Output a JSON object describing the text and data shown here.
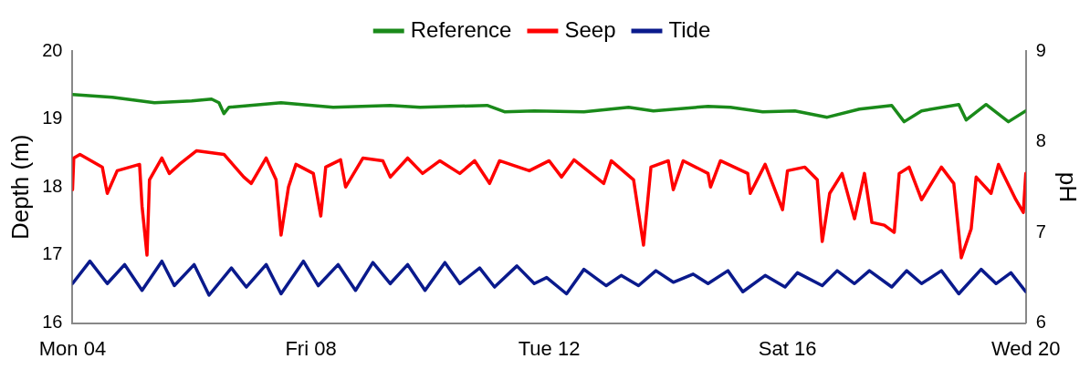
{
  "chart_data": {
    "type": "line",
    "ylabel": "Depth (m)",
    "y2label": "pH",
    "xlim": [
      "--03-04",
      "--03-20"
    ],
    "xticks": [
      {
        "value": "--03-04",
        "label": "Mon 04"
      },
      {
        "value": "--03-08",
        "label": "Fri 08"
      },
      {
        "value": "--03-12",
        "label": "Tue 12"
      },
      {
        "value": "--03-16",
        "label": "Sat 16"
      },
      {
        "value": "--03-20",
        "label": "Wed 20"
      }
    ],
    "ylim": [
      16,
      20
    ],
    "yticks": [
      16,
      17,
      18,
      19,
      20
    ],
    "y2lim": [
      6,
      9
    ],
    "y2ticks": [
      6,
      7,
      8,
      9
    ],
    "legend": "top",
    "grid": false,
    "marker": "none",
    "line_style": "solid",
    "series": [
      {
        "name": "Reference",
        "color": "#1a8a1a",
        "axis": "y2",
        "x": [
          "--03-04T00:00",
          "--03-04T16:00",
          "--03-05T09:00",
          "--03-06T00:00",
          "--03-06T08:00",
          "--03-06T11:00",
          "--03-06T13:00",
          "--03-06T15:00",
          "--03-07T12:00",
          "--03-08T09:00",
          "--03-09T08:00",
          "--03-09T20:00",
          "--03-10T23:00",
          "--03-11T06:00",
          "--03-11T18:00",
          "--03-12T14:00",
          "--03-13T08:00",
          "--03-13T18:00",
          "--03-14T16:00",
          "--03-15T01:00",
          "--03-15T14:00",
          "--03-16T03:00",
          "--03-16T16:00",
          "--03-17T05:00",
          "--03-17T18:00",
          "--03-17T23:00",
          "--03-18T06:00",
          "--03-18T21:00",
          "--03-19T00:00",
          "--03-19T08:00",
          "--03-19T17:00",
          "--03-20T00:00"
        ],
        "values": [
          8.52,
          8.49,
          8.43,
          8.45,
          8.47,
          8.43,
          8.31,
          8.38,
          8.43,
          8.38,
          8.4,
          8.38,
          8.4,
          8.33,
          8.34,
          8.33,
          8.38,
          8.34,
          8.39,
          8.38,
          8.33,
          8.34,
          8.27,
          8.36,
          8.4,
          8.22,
          8.34,
          8.41,
          8.24,
          8.41,
          8.22,
          8.34
        ]
      },
      {
        "name": "Seep",
        "color": "#ff0000",
        "axis": "y2",
        "x": [
          "--03-04T00:00",
          "--03-04T00:30",
          "--03-04T03:00",
          "--03-04T12:00",
          "--03-04T14:00",
          "--03-04T18:00",
          "--03-05T03:00",
          "--03-05T04:00",
          "--03-05T06:00",
          "--03-05T07:00",
          "--03-05T12:00",
          "--03-05T15:00",
          "--03-05T19:00",
          "--03-06T02:00",
          "--03-06T13:00",
          "--03-06T21:00",
          "--03-07T00:00",
          "--03-07T06:00",
          "--03-07T10:00",
          "--03-07T12:00",
          "--03-07T15:00",
          "--03-07T18:00",
          "--03-08T01:00",
          "--03-08T04:00",
          "--03-08T06:00",
          "--03-08T12:00",
          "--03-08T14:00",
          "--03-08T21:00",
          "--03-09T05:00",
          "--03-09T08:00",
          "--03-09T15:00",
          "--03-09T21:00",
          "--03-10T04:00",
          "--03-10T12:00",
          "--03-10T18:00",
          "--03-11T00:00",
          "--03-11T04:00",
          "--03-11T16:00",
          "--03-12T00:00",
          "--03-12T05:00",
          "--03-12T10:00",
          "--03-12T22:00",
          "--03-13T01:00",
          "--03-13T10:00",
          "--03-13T14:00",
          "--03-13T17:00",
          "--03-14T00:00",
          "--03-14T02:00",
          "--03-14T06:00",
          "--03-14T16:00",
          "--03-14T17:00",
          "--03-14T21:00",
          "--03-15T08:00",
          "--03-15T09:00",
          "--03-15T15:00",
          "--03-15T22:00",
          "--03-16T00:00",
          "--03-16T07:00",
          "--03-16T12:00",
          "--03-16T14:00",
          "--03-16T17:00",
          "--03-16T22:00",
          "--03-17T03:00",
          "--03-17T07:00",
          "--03-17T10:00",
          "--03-17T15:00",
          "--03-17T19:00",
          "--03-17T21:00",
          "--03-18T01:00",
          "--03-18T06:00",
          "--03-18T14:00",
          "--03-18T19:00",
          "--03-18T22:00",
          "--03-19T02:00",
          "--03-19T04:00",
          "--03-19T10:00",
          "--03-19T13:00",
          "--03-19T20:00",
          "--03-19T23:00",
          "--03-20T00:00"
        ],
        "values": [
          7.47,
          7.82,
          7.86,
          7.72,
          7.43,
          7.68,
          7.75,
          7.29,
          6.75,
          7.58,
          7.82,
          7.65,
          7.75,
          7.9,
          7.86,
          7.61,
          7.54,
          7.82,
          7.58,
          6.97,
          7.5,
          7.75,
          7.65,
          7.18,
          7.72,
          7.8,
          7.5,
          7.82,
          7.79,
          7.61,
          7.82,
          7.65,
          7.79,
          7.65,
          7.79,
          7.54,
          7.79,
          7.68,
          7.79,
          7.61,
          7.8,
          7.54,
          7.79,
          7.58,
          6.86,
          7.72,
          7.79,
          7.47,
          7.79,
          7.65,
          7.5,
          7.79,
          7.65,
          7.43,
          7.75,
          7.25,
          7.68,
          7.72,
          7.58,
          6.9,
          7.43,
          7.65,
          7.15,
          7.65,
          7.11,
          7.08,
          7.0,
          7.65,
          7.72,
          7.36,
          7.72,
          7.54,
          6.72,
          7.04,
          7.61,
          7.43,
          7.75,
          7.36,
          7.22,
          7.65
        ]
      },
      {
        "name": "Tide",
        "color": "#0a1a8c",
        "x": [
          "--03-04T00:00",
          "--03-04T07:00",
          "--03-04T14:00",
          "--03-04T21:00",
          "--03-05T04:00",
          "--03-05T12:00",
          "--03-05T17:00",
          "--03-06T01:00",
          "--03-06T07:00",
          "--03-06T16:00",
          "--03-06T22:00",
          "--03-07T06:00",
          "--03-07T12:00",
          "--03-07T21:00",
          "--03-08T03:00",
          "--03-08T11:00",
          "--03-08T18:00",
          "--03-09T01:00",
          "--03-09T08:00",
          "--03-09T15:00",
          "--03-09T22:00",
          "--03-10T06:00",
          "--03-10T12:00",
          "--03-10T20:00",
          "--03-11T02:00",
          "--03-11T11:00",
          "--03-11T18:00",
          "--03-11T23:00",
          "--03-12T07:00",
          "--03-12T14:00",
          "--03-12T23:00",
          "--03-13T05:00",
          "--03-13T12:00",
          "--03-13T19:00",
          "--03-14T02:00",
          "--03-14T10:00",
          "--03-14T16:00",
          "--03-15T00:00",
          "--03-15T06:00",
          "--03-15T15:00",
          "--03-15T23:00",
          "--03-16T04:00",
          "--03-16T14:00",
          "--03-16T20:00",
          "--03-17T03:00",
          "--03-17T09:00",
          "--03-17T18:00",
          "--03-18T00:00",
          "--03-18T06:00",
          "--03-18T14:00",
          "--03-18T21:00",
          "--03-19T06:00",
          "--03-19T12:00",
          "--03-19T18:00",
          "--03-20T00:00"
        ],
        "values": [
          16.58,
          16.91,
          16.58,
          16.86,
          16.48,
          16.91,
          16.55,
          16.86,
          16.41,
          16.81,
          16.53,
          16.86,
          16.43,
          16.91,
          16.55,
          16.86,
          16.48,
          16.89,
          16.58,
          16.86,
          16.48,
          16.89,
          16.58,
          16.81,
          16.53,
          16.84,
          16.58,
          16.67,
          16.43,
          16.79,
          16.55,
          16.7,
          16.55,
          16.77,
          16.6,
          16.72,
          16.58,
          16.77,
          16.46,
          16.7,
          16.53,
          16.74,
          16.55,
          16.77,
          16.58,
          16.77,
          16.53,
          16.77,
          16.58,
          16.77,
          16.43,
          16.79,
          16.58,
          16.74,
          16.46
        ]
      }
    ]
  }
}
